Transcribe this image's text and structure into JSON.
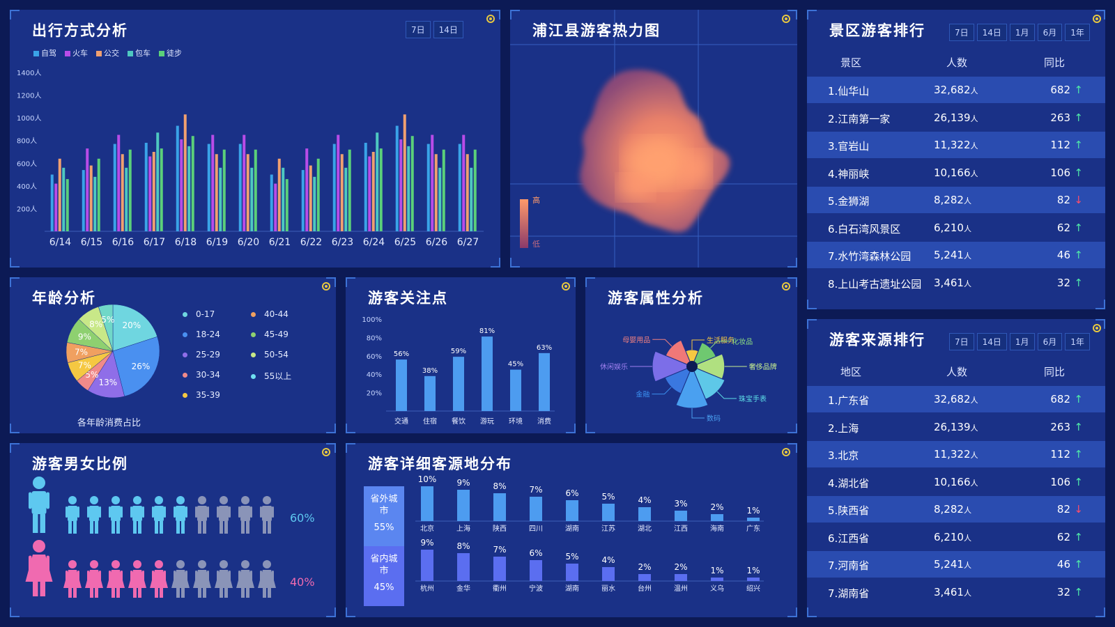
{
  "colors": {
    "accent": "#3d72d6",
    "bg": "#0c1a55",
    "panel": "#1a3187"
  },
  "travel": {
    "title": "出行方式分析",
    "tabs": [
      "7日",
      "14日"
    ],
    "chart_data": {
      "type": "bar",
      "categories": [
        "6/14",
        "6/15",
        "6/16",
        "6/17",
        "6/18",
        "6/19",
        "6/20",
        "6/21",
        "6/22",
        "6/23",
        "6/24",
        "6/25",
        "6/26",
        "6/27"
      ],
      "yticks": [
        "200人",
        "400人",
        "600人",
        "800人",
        "1000人",
        "1200人",
        "1400人"
      ],
      "ylim": [
        0,
        1400
      ],
      "series": [
        {
          "name": "自驾",
          "color": "#3aa3e8",
          "values": [
            500,
            540,
            770,
            780,
            930,
            770,
            770,
            500,
            540,
            770,
            780,
            930,
            770,
            770
          ]
        },
        {
          "name": "火车",
          "color": "#b84ce8",
          "values": [
            420,
            730,
            850,
            660,
            810,
            850,
            850,
            420,
            730,
            850,
            660,
            810,
            850,
            850
          ]
        },
        {
          "name": "公交",
          "color": "#f0a070",
          "values": [
            640,
            580,
            680,
            700,
            1030,
            680,
            680,
            640,
            580,
            680,
            700,
            1030,
            680,
            680
          ]
        },
        {
          "name": "包车",
          "color": "#4ec8c0",
          "values": [
            560,
            480,
            560,
            870,
            750,
            560,
            560,
            560,
            480,
            560,
            870,
            750,
            560,
            560
          ]
        },
        {
          "name": "徒步",
          "color": "#5bd07a",
          "values": [
            460,
            640,
            720,
            730,
            840,
            720,
            720,
            460,
            640,
            720,
            730,
            840,
            720,
            720
          ]
        }
      ]
    }
  },
  "heatmap": {
    "title": "浦江县游客热力图",
    "legend_high": "高",
    "legend_low": "低"
  },
  "scenic": {
    "title": "景区游客排行",
    "tabs": [
      "7日",
      "14日",
      "1月",
      "6月",
      "1年"
    ],
    "headers": [
      "景区",
      "人数",
      "同比"
    ],
    "unit": "人",
    "rows": [
      {
        "name": "1.仙华山",
        "count": "32,682",
        "yoy": "682",
        "trend": "up",
        "arrow": "↑"
      },
      {
        "name": "2.江南第一家",
        "count": "26,139",
        "yoy": "263",
        "trend": "up",
        "arrow": "↑"
      },
      {
        "name": "3.官岩山",
        "count": "11,322",
        "yoy": "112",
        "trend": "up",
        "arrow": "↑"
      },
      {
        "name": "4.神丽峡",
        "count": "10,166",
        "yoy": "106",
        "trend": "up",
        "arrow": "↑"
      },
      {
        "name": "5.金狮湖",
        "count": "8,282",
        "yoy": "82",
        "trend": "down",
        "arrow": "↓"
      },
      {
        "name": "6.白石湾风景区",
        "count": "6,210",
        "yoy": "62",
        "trend": "up",
        "arrow": "↑"
      },
      {
        "name": "7.水竹湾森林公园",
        "count": "5,241",
        "yoy": "46",
        "trend": "up",
        "arrow": "↑"
      },
      {
        "name": "8.上山考古遗址公园",
        "count": "3,461",
        "yoy": "32",
        "trend": "up",
        "arrow": "↑"
      }
    ]
  },
  "source": {
    "title": "游客来源排行",
    "tabs": [
      "7日",
      "14日",
      "1月",
      "6月",
      "1年"
    ],
    "headers": [
      "地区",
      "人数",
      "同比"
    ],
    "unit": "人",
    "rows": [
      {
        "name": "1.广东省",
        "count": "32,682",
        "yoy": "682",
        "trend": "up",
        "arrow": "↑"
      },
      {
        "name": "2.上海",
        "count": "26,139",
        "yoy": "263",
        "trend": "up",
        "arrow": "↑"
      },
      {
        "name": "3.北京",
        "count": "11,322",
        "yoy": "112",
        "trend": "up",
        "arrow": "↑"
      },
      {
        "name": "4.湖北省",
        "count": "10,166",
        "yoy": "106",
        "trend": "up",
        "arrow": "↑"
      },
      {
        "name": "5.陕西省",
        "count": "8,282",
        "yoy": "82",
        "trend": "down",
        "arrow": "↓"
      },
      {
        "name": "6.江西省",
        "count": "6,210",
        "yoy": "62",
        "trend": "up",
        "arrow": "↑"
      },
      {
        "name": "7.河南省",
        "count": "5,241",
        "yoy": "46",
        "trend": "up",
        "arrow": "↑"
      },
      {
        "name": "7.湖南省",
        "count": "3,461",
        "yoy": "32",
        "trend": "up",
        "arrow": "↑"
      }
    ]
  },
  "age": {
    "title": "年龄分析",
    "caption": "各年龄消费占比",
    "chart_data": {
      "type": "pie",
      "slices": [
        {
          "label": "55以上",
          "value": 20,
          "text": "20%",
          "color": "#6fd6e0"
        },
        {
          "label": "18-24",
          "value": 26,
          "text": "26%",
          "color": "#4a90f0"
        },
        {
          "label": "25-29",
          "value": 13,
          "text": "13%",
          "color": "#8f6ee8"
        },
        {
          "label": "30-34",
          "value": 5,
          "text": "5%",
          "color": "#f08a8a"
        },
        {
          "label": "35-39",
          "value": 7,
          "text": "7%",
          "color": "#f5c842"
        },
        {
          "label": "40-44",
          "value": 7,
          "text": "7%",
          "color": "#f0a060"
        },
        {
          "label": "45-49",
          "value": 9,
          "text": "9%",
          "color": "#8ed070"
        },
        {
          "label": "50-54",
          "value": 8,
          "text": "8%",
          "color": "#c8e888"
        },
        {
          "label": "0-17",
          "value": 5,
          "text": "5%",
          "color": "#70d8c8"
        }
      ],
      "legend": [
        {
          "label": "0-17",
          "color": "#6fd6e0"
        },
        {
          "label": "40-44",
          "color": "#f0a060"
        },
        {
          "label": "18-24",
          "color": "#4a90f0"
        },
        {
          "label": "45-49",
          "color": "#8ed070"
        },
        {
          "label": "25-29",
          "color": "#8f6ee8"
        },
        {
          "label": "50-54",
          "color": "#c8e888"
        },
        {
          "label": "30-34",
          "color": "#f08a8a"
        },
        {
          "label": "55以上",
          "color": "#70e0f0"
        },
        {
          "label": "35-39",
          "color": "#f5c842"
        }
      ]
    }
  },
  "focus": {
    "title": "游客关注点",
    "chart_data": {
      "type": "bar",
      "categories": [
        "交通",
        "住宿",
        "餐饮",
        "游玩",
        "环境",
        "消费"
      ],
      "values": [
        56,
        38,
        59,
        81,
        45,
        63
      ],
      "labels": [
        "56%",
        "38%",
        "59%",
        "81%",
        "45%",
        "63%"
      ],
      "yticks": [
        "20%",
        "40%",
        "60%",
        "80%",
        "100%"
      ],
      "ylim": [
        0,
        100
      ],
      "color": "#4d9cf0"
    }
  },
  "attr": {
    "title": "游客属性分析",
    "chart_data": {
      "type": "pie",
      "slices": [
        {
          "label": "生活服务",
          "value": 40,
          "color": "#f5c842",
          "lc": "#f5c842"
        },
        {
          "label": "化妆品",
          "value": 62,
          "color": "#6fc870",
          "lc": "#8fe080"
        },
        {
          "label": "奢侈品牌",
          "value": 78,
          "color": "#b0e080",
          "lc": "#c8f090"
        },
        {
          "label": "珠宝手表",
          "value": 85,
          "color": "#5ec8e8",
          "lc": "#5ee0e8"
        },
        {
          "label": "数码",
          "value": 100,
          "color": "#4aa0f0",
          "lc": "#4aa0f0"
        },
        {
          "label": "金融",
          "value": 70,
          "color": "#3a78e0",
          "lc": "#3a90f0"
        },
        {
          "label": "休闲娱乐",
          "value": 95,
          "color": "#7c6ee8",
          "lc": "#a080f0"
        },
        {
          "label": "母婴用品",
          "value": 68,
          "color": "#f07878",
          "lc": "#f08080"
        }
      ]
    }
  },
  "gender": {
    "title": "游客男女比例",
    "male_pct": "60%",
    "female_pct": "40%",
    "male_ratio": 0.6,
    "female_ratio": 0.4
  },
  "detail": {
    "title": "游客详细客源地分布",
    "outside": {
      "label": "省外城市",
      "pct": "55%"
    },
    "inside": {
      "label": "省内城市",
      "pct": "45%"
    },
    "chart_data": [
      {
        "type": "bar",
        "name": "省外城市",
        "categories": [
          "北京",
          "上海",
          "陕西",
          "四川",
          "湖南",
          "江苏",
          "湖北",
          "江西",
          "海南",
          "广东"
        ],
        "values": [
          10,
          9,
          8,
          7,
          6,
          5,
          4,
          3,
          2,
          1
        ],
        "labels": [
          "10%",
          "9%",
          "8%",
          "7%",
          "6%",
          "5%",
          "4%",
          "3%",
          "2%",
          "1%"
        ],
        "color": "#4d9cf0"
      },
      {
        "type": "bar",
        "name": "省内城市",
        "categories": [
          "杭州",
          "金华",
          "衢州",
          "宁波",
          "湖南",
          "丽水",
          "台州",
          "温州",
          "义乌",
          "绍兴"
        ],
        "values": [
          9,
          8,
          7,
          6,
          5,
          4,
          2,
          2,
          1,
          1
        ],
        "labels": [
          "9%",
          "8%",
          "7%",
          "6%",
          "5%",
          "4%",
          "2%",
          "2%",
          "1%",
          "1%"
        ],
        "color": "#5b6ef0"
      }
    ]
  }
}
